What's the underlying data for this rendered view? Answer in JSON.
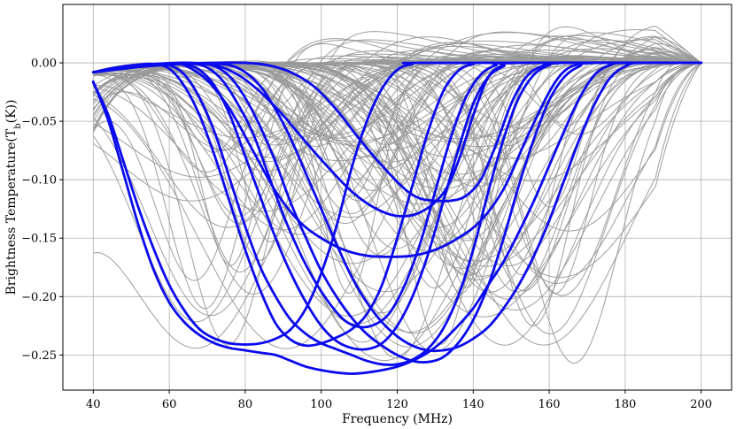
{
  "chart_data": {
    "type": "line",
    "title": "",
    "xlabel": "Frequency (MHz)",
    "ylabel": "Brightness Temperature(T_b(K))",
    "ylabel_main": "Brightness Temperature(T",
    "ylabel_sub": "b",
    "ylabel_end": "(K))",
    "xlim": [
      32,
      208
    ],
    "ylim": [
      -0.28,
      0.05
    ],
    "xticks": [
      40,
      60,
      80,
      100,
      120,
      140,
      160,
      180,
      200
    ],
    "xtick_labels": [
      "40",
      "60",
      "80",
      "100",
      "120",
      "140",
      "160",
      "180",
      "200"
    ],
    "yticks": [
      0.0,
      -0.05,
      -0.1,
      -0.15,
      -0.2,
      -0.25
    ],
    "ytick_labels": [
      "0.00",
      "−0.05",
      "−0.10",
      "−0.15",
      "−0.20",
      "−0.25"
    ],
    "grid": true,
    "colors": {
      "background_series": "#999999",
      "highlight_series": "#0a0aee"
    },
    "background_series_count": 120,
    "highlighted_series": [
      {
        "points": [
          [
            40,
            -0.008
          ],
          [
            48,
            -0.005
          ],
          [
            56,
            -0.002
          ],
          [
            64,
            -0.0005
          ],
          [
            72,
            0
          ],
          [
            80,
            0
          ],
          [
            86,
            -0.002
          ],
          [
            92,
            -0.008
          ],
          [
            98,
            -0.02
          ],
          [
            104,
            -0.04
          ],
          [
            110,
            -0.065
          ],
          [
            116,
            -0.088
          ],
          [
            122,
            -0.108
          ],
          [
            126,
            -0.116
          ],
          [
            130,
            -0.118
          ],
          [
            134,
            -0.118
          ],
          [
            138,
            -0.114
          ],
          [
            142,
            -0.1
          ],
          [
            146,
            -0.07
          ],
          [
            150,
            -0.035
          ],
          [
            154,
            -0.012
          ],
          [
            158,
            -0.003
          ],
          [
            164,
            0
          ],
          [
            200,
            0
          ]
        ]
      },
      {
        "points": [
          [
            40,
            -0.008
          ],
          [
            50,
            -0.003
          ],
          [
            58,
            -0.0005
          ],
          [
            66,
            0
          ],
          [
            72,
            -0.002
          ],
          [
            78,
            -0.01
          ],
          [
            84,
            -0.025
          ],
          [
            90,
            -0.045
          ],
          [
            96,
            -0.068
          ],
          [
            102,
            -0.09
          ],
          [
            108,
            -0.11
          ],
          [
            114,
            -0.124
          ],
          [
            120,
            -0.131
          ],
          [
            126,
            -0.128
          ],
          [
            132,
            -0.112
          ],
          [
            136,
            -0.085
          ],
          [
            140,
            -0.045
          ],
          [
            144,
            -0.012
          ],
          [
            148,
            -0.002
          ],
          [
            152,
            0
          ],
          [
            200,
            0
          ]
        ]
      },
      {
        "points": [
          [
            40,
            -0.008
          ],
          [
            50,
            -0.004
          ],
          [
            56,
            -0.002
          ],
          [
            60,
            -0.0005
          ],
          [
            64,
            -0.002
          ],
          [
            70,
            -0.015
          ],
          [
            76,
            -0.04
          ],
          [
            82,
            -0.075
          ],
          [
            88,
            -0.11
          ],
          [
            94,
            -0.135
          ],
          [
            100,
            -0.15
          ],
          [
            106,
            -0.16
          ],
          [
            112,
            -0.165
          ],
          [
            118,
            -0.166
          ],
          [
            124,
            -0.165
          ],
          [
            130,
            -0.16
          ],
          [
            136,
            -0.15
          ],
          [
            142,
            -0.135
          ],
          [
            148,
            -0.108
          ],
          [
            154,
            -0.065
          ],
          [
            160,
            -0.025
          ],
          [
            164,
            -0.007
          ],
          [
            168,
            -0.001
          ],
          [
            172,
            0
          ],
          [
            200,
            0
          ]
        ]
      },
      {
        "points": [
          [
            40,
            -0.008
          ],
          [
            46,
            -0.004
          ],
          [
            52,
            -0.0015
          ],
          [
            56,
            -0.001
          ],
          [
            60,
            -0.005
          ],
          [
            64,
            -0.02
          ],
          [
            68,
            -0.045
          ],
          [
            72,
            -0.08
          ],
          [
            76,
            -0.12
          ],
          [
            80,
            -0.16
          ],
          [
            84,
            -0.195
          ],
          [
            88,
            -0.223
          ],
          [
            92,
            -0.237
          ],
          [
            96,
            -0.242
          ],
          [
            100,
            -0.24
          ],
          [
            104,
            -0.235
          ],
          [
            108,
            -0.228
          ],
          [
            112,
            -0.215
          ],
          [
            116,
            -0.19
          ],
          [
            120,
            -0.15
          ],
          [
            124,
            -0.105
          ],
          [
            128,
            -0.06
          ],
          [
            132,
            -0.025
          ],
          [
            136,
            -0.007
          ],
          [
            140,
            -0.001
          ],
          [
            144,
            0
          ],
          [
            200,
            0
          ]
        ]
      },
      {
        "points": [
          [
            40,
            -0.008
          ],
          [
            50,
            -0.004
          ],
          [
            60,
            -0.001
          ],
          [
            66,
            -0.0005
          ],
          [
            70,
            -0.004
          ],
          [
            74,
            -0.015
          ],
          [
            78,
            -0.035
          ],
          [
            82,
            -0.06
          ],
          [
            86,
            -0.095
          ],
          [
            90,
            -0.13
          ],
          [
            94,
            -0.16
          ],
          [
            98,
            -0.185
          ],
          [
            102,
            -0.205
          ],
          [
            106,
            -0.22
          ],
          [
            110,
            -0.226
          ],
          [
            114,
            -0.224
          ],
          [
            118,
            -0.214
          ],
          [
            122,
            -0.19
          ],
          [
            126,
            -0.155
          ],
          [
            130,
            -0.11
          ],
          [
            134,
            -0.065
          ],
          [
            138,
            -0.03
          ],
          [
            142,
            -0.01
          ],
          [
            146,
            -0.002
          ],
          [
            150,
            0
          ],
          [
            200,
            0
          ]
        ]
      },
      {
        "points": [
          [
            40,
            -0.008
          ],
          [
            50,
            -0.004
          ],
          [
            60,
            -0.0015
          ],
          [
            64,
            -0.001
          ],
          [
            68,
            -0.006
          ],
          [
            72,
            -0.02
          ],
          [
            76,
            -0.045
          ],
          [
            80,
            -0.08
          ],
          [
            84,
            -0.115
          ],
          [
            88,
            -0.15
          ],
          [
            92,
            -0.18
          ],
          [
            96,
            -0.205
          ],
          [
            100,
            -0.225
          ],
          [
            104,
            -0.238
          ],
          [
            108,
            -0.244
          ],
          [
            112,
            -0.245
          ],
          [
            116,
            -0.24
          ],
          [
            120,
            -0.225
          ],
          [
            124,
            -0.2
          ],
          [
            128,
            -0.165
          ],
          [
            132,
            -0.12
          ],
          [
            136,
            -0.075
          ],
          [
            140,
            -0.035
          ],
          [
            144,
            -0.012
          ],
          [
            148,
            -0.003
          ],
          [
            152,
            0
          ],
          [
            200,
            0
          ]
        ]
      },
      {
        "points": [
          [
            40,
            -0.017
          ],
          [
            44,
            -0.045
          ],
          [
            48,
            -0.085
          ],
          [
            52,
            -0.125
          ],
          [
            56,
            -0.16
          ],
          [
            60,
            -0.19
          ],
          [
            64,
            -0.212
          ],
          [
            68,
            -0.228
          ],
          [
            72,
            -0.236
          ],
          [
            76,
            -0.24
          ],
          [
            80,
            -0.241
          ],
          [
            84,
            -0.24
          ],
          [
            88,
            -0.236
          ],
          [
            92,
            -0.228
          ],
          [
            96,
            -0.21
          ],
          [
            100,
            -0.18
          ],
          [
            104,
            -0.14
          ],
          [
            108,
            -0.09
          ],
          [
            112,
            -0.05
          ],
          [
            116,
            -0.022
          ],
          [
            120,
            -0.006
          ],
          [
            124,
            -0.001
          ],
          [
            128,
            0
          ],
          [
            200,
            0
          ]
        ]
      },
      {
        "points": [
          [
            40,
            -0.008
          ],
          [
            50,
            -0.0025
          ],
          [
            56,
            -0.001
          ],
          [
            60,
            -0.002
          ],
          [
            64,
            -0.01
          ],
          [
            68,
            -0.03
          ],
          [
            72,
            -0.06
          ],
          [
            76,
            -0.1
          ],
          [
            80,
            -0.14
          ],
          [
            84,
            -0.175
          ],
          [
            88,
            -0.2
          ],
          [
            92,
            -0.22
          ],
          [
            96,
            -0.232
          ],
          [
            100,
            -0.24
          ],
          [
            104,
            -0.245
          ],
          [
            108,
            -0.25
          ],
          [
            112,
            -0.255
          ],
          [
            116,
            -0.258
          ],
          [
            120,
            -0.258
          ],
          [
            124,
            -0.254
          ],
          [
            128,
            -0.245
          ],
          [
            132,
            -0.228
          ],
          [
            136,
            -0.2
          ],
          [
            140,
            -0.16
          ],
          [
            144,
            -0.11
          ],
          [
            148,
            -0.065
          ],
          [
            152,
            -0.03
          ],
          [
            156,
            -0.01
          ],
          [
            160,
            -0.002
          ],
          [
            164,
            0
          ],
          [
            200,
            0
          ]
        ]
      },
      {
        "points": [
          [
            40,
            -0.008
          ],
          [
            50,
            -0.004
          ],
          [
            60,
            -0.0012
          ],
          [
            68,
            -0.0005
          ],
          [
            72,
            -0.003
          ],
          [
            76,
            -0.012
          ],
          [
            80,
            -0.03
          ],
          [
            84,
            -0.055
          ],
          [
            88,
            -0.085
          ],
          [
            92,
            -0.12
          ],
          [
            96,
            -0.15
          ],
          [
            100,
            -0.178
          ],
          [
            104,
            -0.2
          ],
          [
            108,
            -0.218
          ],
          [
            112,
            -0.232
          ],
          [
            116,
            -0.242
          ],
          [
            120,
            -0.25
          ],
          [
            124,
            -0.255
          ],
          [
            128,
            -0.256
          ],
          [
            132,
            -0.252
          ],
          [
            136,
            -0.24
          ],
          [
            140,
            -0.22
          ],
          [
            144,
            -0.19
          ],
          [
            148,
            -0.15
          ],
          [
            152,
            -0.105
          ],
          [
            156,
            -0.065
          ],
          [
            160,
            -0.032
          ],
          [
            164,
            -0.012
          ],
          [
            168,
            -0.003
          ],
          [
            172,
            0
          ],
          [
            200,
            0
          ]
        ]
      },
      {
        "points": [
          [
            40,
            -0.016
          ],
          [
            44,
            -0.05
          ],
          [
            48,
            -0.095
          ],
          [
            52,
            -0.14
          ],
          [
            56,
            -0.178
          ],
          [
            60,
            -0.205
          ],
          [
            64,
            -0.222
          ],
          [
            68,
            -0.233
          ],
          [
            72,
            -0.24
          ],
          [
            76,
            -0.244
          ],
          [
            80,
            -0.246
          ],
          [
            84,
            -0.248
          ],
          [
            88,
            -0.25
          ],
          [
            92,
            -0.255
          ],
          [
            96,
            -0.26
          ],
          [
            100,
            -0.263
          ],
          [
            104,
            -0.265
          ],
          [
            108,
            -0.266
          ],
          [
            112,
            -0.265
          ],
          [
            116,
            -0.263
          ],
          [
            120,
            -0.26
          ],
          [
            124,
            -0.255
          ],
          [
            128,
            -0.248
          ],
          [
            132,
            -0.238
          ],
          [
            136,
            -0.225
          ],
          [
            140,
            -0.21
          ],
          [
            144,
            -0.19
          ],
          [
            148,
            -0.17
          ],
          [
            152,
            -0.145
          ],
          [
            156,
            -0.118
          ],
          [
            160,
            -0.088
          ],
          [
            164,
            -0.058
          ],
          [
            168,
            -0.03
          ],
          [
            172,
            -0.01
          ],
          [
            176,
            -0.002
          ],
          [
            180,
            0
          ],
          [
            200,
            0
          ]
        ]
      },
      {
        "points": [
          [
            40,
            -0.008
          ],
          [
            50,
            -0.004
          ],
          [
            60,
            -0.0015
          ],
          [
            70,
            -0.0005
          ],
          [
            76,
            -0.002
          ],
          [
            80,
            -0.008
          ],
          [
            84,
            -0.02
          ],
          [
            88,
            -0.04
          ],
          [
            92,
            -0.065
          ],
          [
            96,
            -0.095
          ],
          [
            100,
            -0.125
          ],
          [
            104,
            -0.155
          ],
          [
            108,
            -0.183
          ],
          [
            112,
            -0.205
          ],
          [
            116,
            -0.222
          ],
          [
            120,
            -0.234
          ],
          [
            124,
            -0.242
          ],
          [
            128,
            -0.246
          ],
          [
            132,
            -0.246
          ],
          [
            136,
            -0.243
          ],
          [
            140,
            -0.236
          ],
          [
            144,
            -0.226
          ],
          [
            148,
            -0.21
          ],
          [
            152,
            -0.19
          ],
          [
            156,
            -0.165
          ],
          [
            160,
            -0.135
          ],
          [
            164,
            -0.1
          ],
          [
            168,
            -0.065
          ],
          [
            172,
            -0.035
          ],
          [
            176,
            -0.013
          ],
          [
            180,
            -0.003
          ],
          [
            184,
            0
          ],
          [
            200,
            0
          ]
        ]
      }
    ]
  }
}
